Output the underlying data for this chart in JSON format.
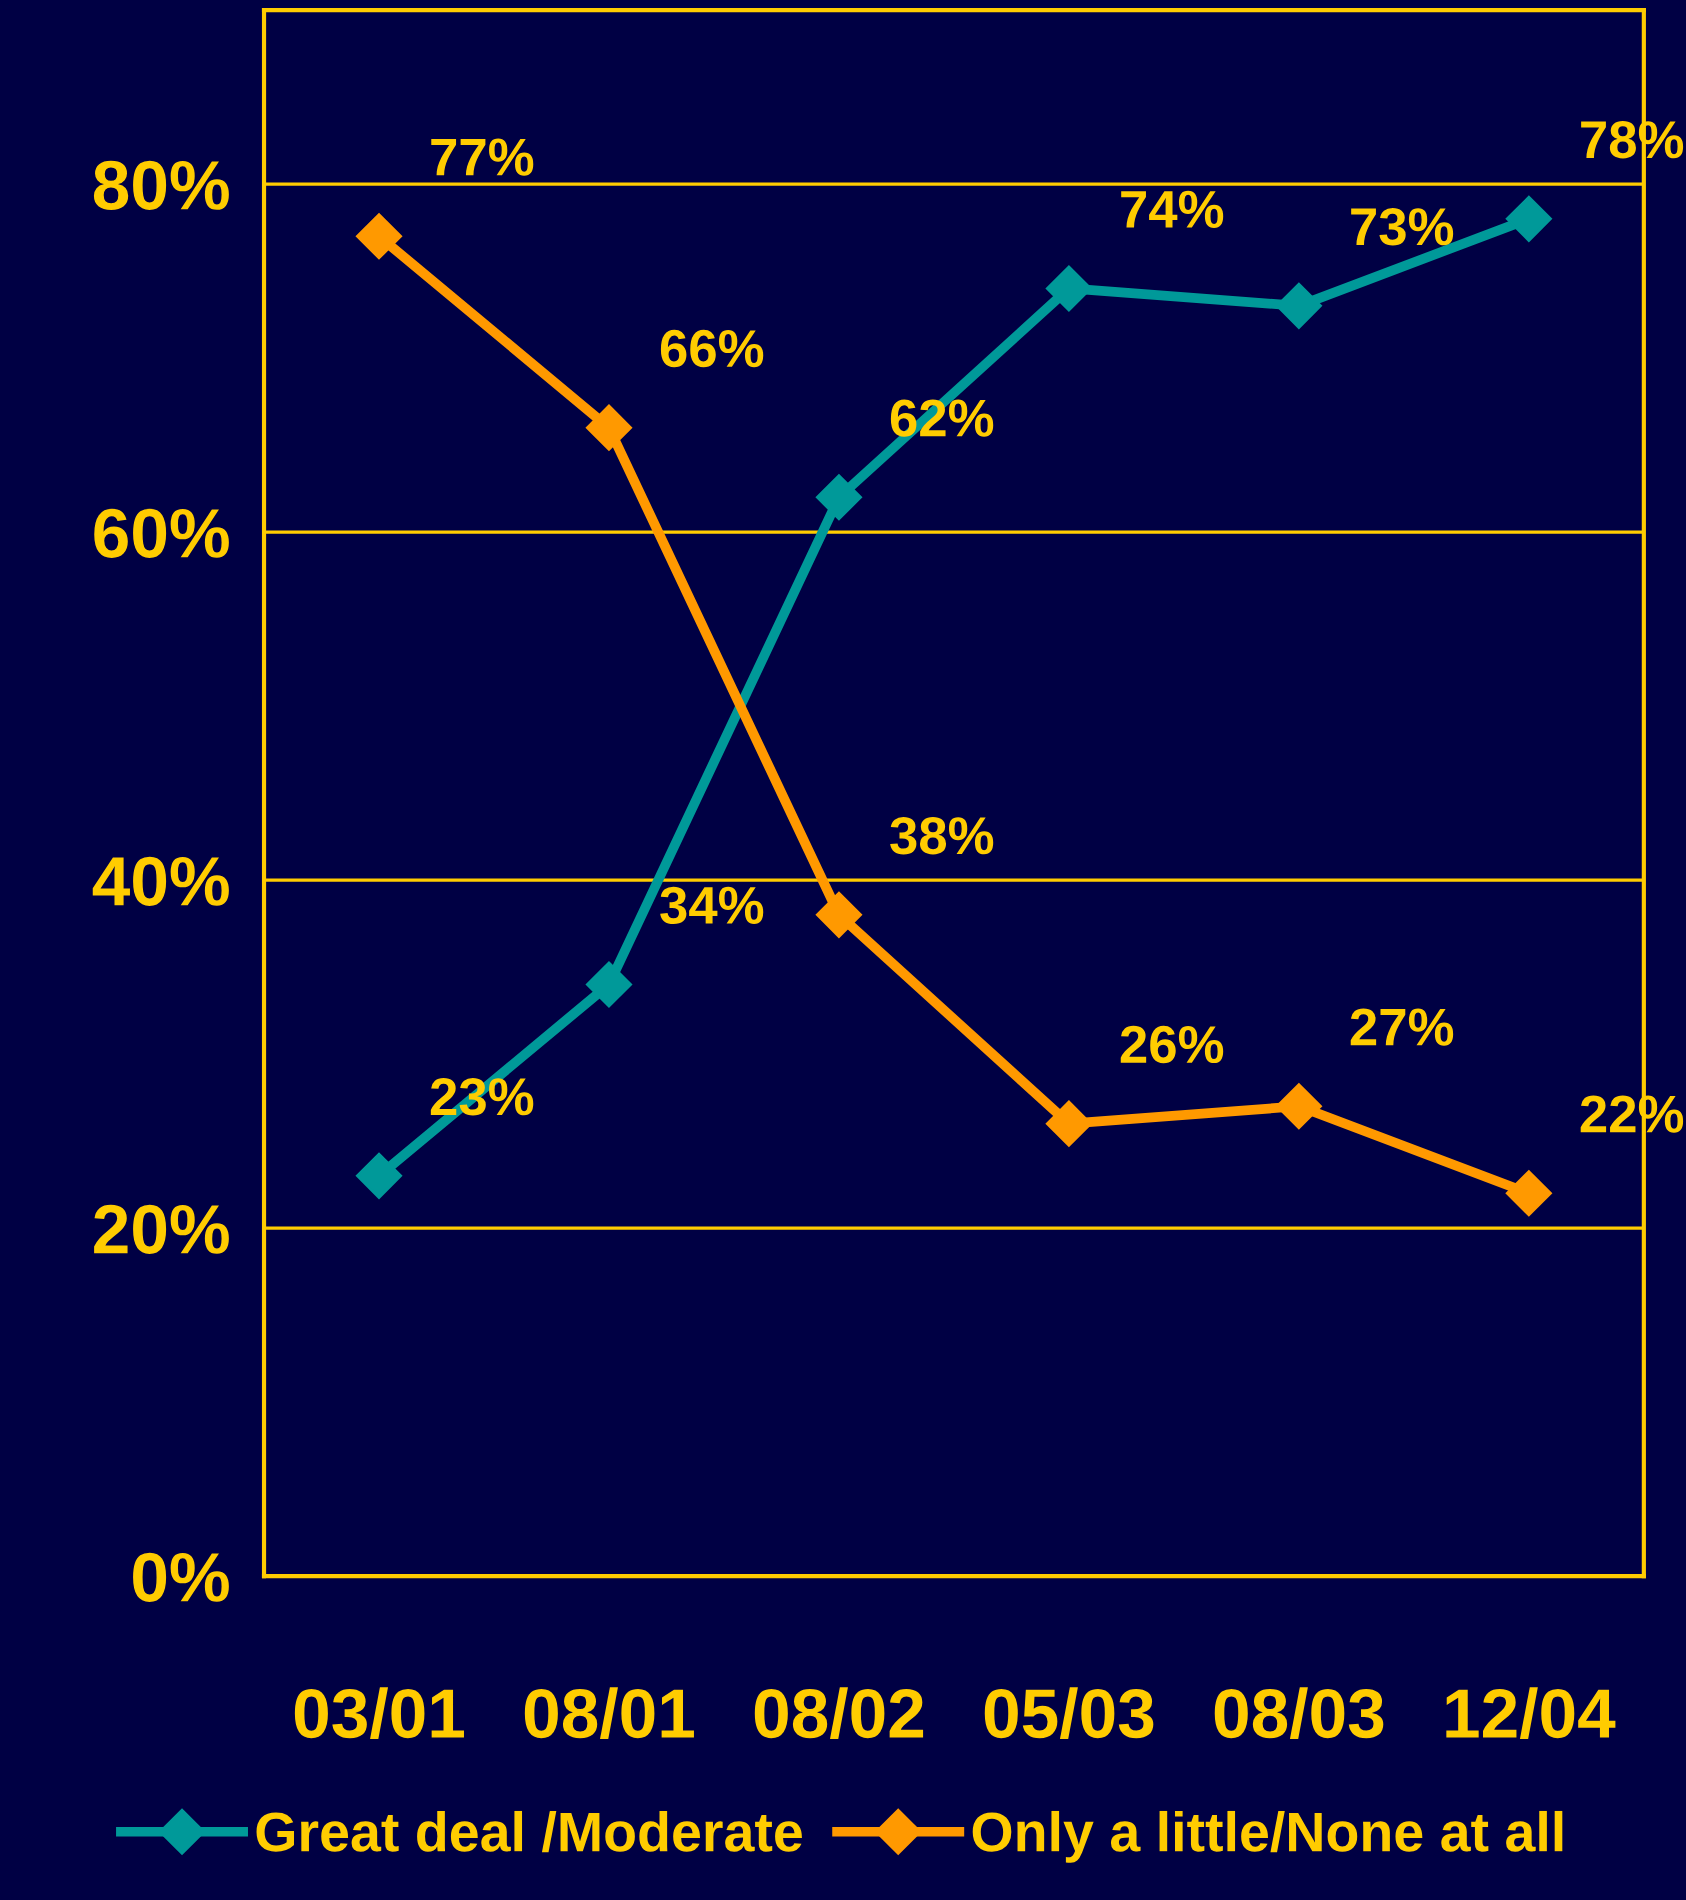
{
  "chart_data": {
    "type": "line",
    "categories": [
      "03/01",
      "08/01",
      "08/02",
      "05/03",
      "08/03",
      "12/04"
    ],
    "series": [
      {
        "name": "Great deal /Moderate",
        "color": "#009999",
        "values": [
          23,
          34,
          62,
          74,
          73,
          78
        ],
        "value_labels": [
          "23%",
          "34%",
          "62%",
          "74%",
          "73%",
          "78%"
        ]
      },
      {
        "name": "Only a little/None at all",
        "color": "#ff9900",
        "values": [
          77,
          66,
          38,
          26,
          27,
          22
        ],
        "value_labels": [
          "77%",
          "66%",
          "38%",
          "26%",
          "27%",
          "22%"
        ]
      }
    ],
    "ylim": [
      0,
      90
    ],
    "yticks": [
      {
        "value": 0,
        "label": "0%"
      },
      {
        "value": 20,
        "label": "20%"
      },
      {
        "value": 40,
        "label": "40%"
      },
      {
        "value": 60,
        "label": "60%"
      },
      {
        "value": 80,
        "label": "80%"
      }
    ],
    "grid": "y",
    "legend": "bottom",
    "marker": "diamond",
    "line_style": "solid"
  }
}
